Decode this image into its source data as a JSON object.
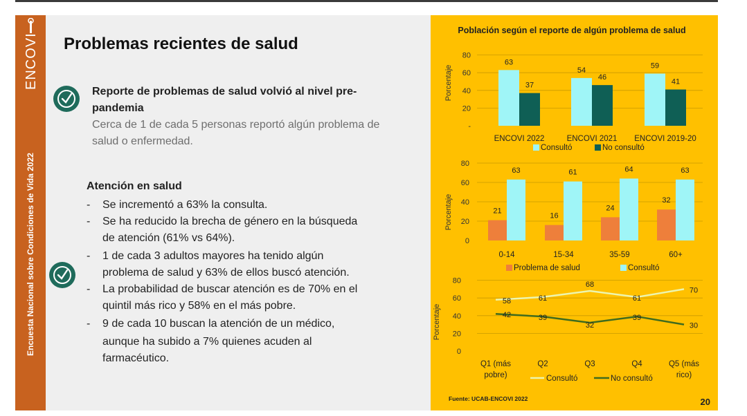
{
  "sidebar": {
    "logo_text": "ENCOVI",
    "vertical_text": "Encuesta Nacional sobre Condiciones de Vida 2022"
  },
  "title": "Problemas recientes de salud",
  "section1": {
    "heading_line1": "Reporte de problemas de salud volvió al nivel pre-",
    "heading_line2": "pandemia",
    "sub_line1": "Cerca de 1 de cada 5 personas reportó algún problema de",
    "sub_line2": "salud o enfermedad."
  },
  "section2": {
    "heading": "Atención en salud",
    "dash": "-",
    "b1": "Se incrementó a 63% la consulta.",
    "b2_l1": "Se ha reducido la brecha de género en la búsqueda",
    "b2_l2": "de atención (61% vs 64%).",
    "b3_l1": "1 de cada 3 adultos mayores ha tenido algún",
    "b3_l2": "problema de salud y 63% de ellos buscó atención.",
    "b4_l1": "La probabilidad de buscar atención es de 70% en el",
    "b4_l2": "quintil más rico y 58% en el más pobre.",
    "b5_l1": "9 de cada 10 buscan la atención de un médico,",
    "b5_l2": "aunque ha subido a 7% quienes acuden al",
    "b5_l3": "farmacéutico."
  },
  "colors": {
    "panel_bg": "#ffc000",
    "light_cyan": "#9ff5f7",
    "dark_teal": "#0f5f55",
    "orange": "#ee7f3b",
    "light_green": "#ecf5b0",
    "dark_green": "#3f6b1e",
    "sidebar": "#c8621f"
  },
  "chart_data": [
    {
      "type": "bar",
      "title": "Población según el reporte de algún problema de salud",
      "ylabel": "Porcentaje",
      "ylim": [
        0,
        80
      ],
      "yticks": [
        "-",
        "20",
        "40",
        "60",
        "80"
      ],
      "categories": [
        "ENCOVI 2022",
        "ENCOVI 2021",
        "ENCOVI 2019-20"
      ],
      "series": [
        {
          "name": "Consultó",
          "values": [
            63,
            54,
            59
          ]
        },
        {
          "name": "No consultó",
          "values": [
            37,
            46,
            41
          ]
        }
      ]
    },
    {
      "type": "bar",
      "ylabel": "Porcentaje",
      "ylim": [
        0,
        80
      ],
      "yticks": [
        "0",
        "20",
        "40",
        "60",
        "80"
      ],
      "categories": [
        "0-14",
        "15-34",
        "35-59",
        "60+"
      ],
      "series": [
        {
          "name": "Problema de salud",
          "values": [
            21,
            16,
            24,
            32
          ]
        },
        {
          "name": "Consultó",
          "values": [
            63,
            61,
            64,
            63
          ]
        }
      ]
    },
    {
      "type": "line",
      "ylabel": "Porcentaje",
      "ylim": [
        0,
        80
      ],
      "yticks": [
        "0",
        "20",
        "40",
        "60",
        "80"
      ],
      "categories": [
        "Q1",
        "Q2",
        "Q3",
        "Q4",
        "Q5"
      ],
      "category_labels": [
        [
          "Q1 (más",
          "pobre)"
        ],
        [
          "Q2"
        ],
        [
          "Q3"
        ],
        [
          "Q4"
        ],
        [
          "Q5 (más",
          "rico)"
        ]
      ],
      "series": [
        {
          "name": "Consultó",
          "values": [
            58,
            61,
            68,
            61,
            70
          ]
        },
        {
          "name": "No consultó",
          "values": [
            42,
            39,
            32,
            39,
            30
          ]
        }
      ]
    }
  ],
  "source": "Fuente: UCAB-ENCOVI 2022",
  "page_number": "20"
}
